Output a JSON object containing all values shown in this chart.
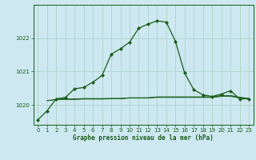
{
  "title": "Graphe pression niveau de la mer (hPa)",
  "bg_color": "#cde8f0",
  "grid_color": "#b0d4cc",
  "line_color": "#1a5c1a",
  "xlim": [
    -0.5,
    23.5
  ],
  "ylim": [
    1019.4,
    1023.0
  ],
  "yticks": [
    1020,
    1021,
    1022
  ],
  "xticks": [
    0,
    1,
    2,
    3,
    4,
    5,
    6,
    7,
    8,
    9,
    10,
    11,
    12,
    13,
    14,
    15,
    16,
    17,
    18,
    19,
    20,
    21,
    22,
    23
  ],
  "main_series": {
    "x": [
      0,
      1,
      2,
      3,
      4,
      5,
      6,
      7,
      8,
      9,
      10,
      11,
      12,
      13,
      14,
      15,
      16,
      17,
      18,
      19,
      20,
      21,
      22,
      23
    ],
    "y": [
      1019.55,
      1019.82,
      1020.18,
      1020.22,
      1020.48,
      1020.52,
      1020.68,
      1020.88,
      1021.52,
      1021.68,
      1021.88,
      1022.3,
      1022.42,
      1022.52,
      1022.48,
      1021.9,
      1020.95,
      1020.45,
      1020.3,
      1020.25,
      1020.32,
      1020.42,
      1020.18,
      1020.18
    ]
  },
  "flat_series1": {
    "x": [
      1,
      2,
      3,
      4,
      5,
      6,
      7,
      8,
      9,
      10,
      11,
      12,
      13,
      14,
      15,
      16,
      17,
      18,
      19,
      20,
      21,
      22,
      23
    ],
    "y": [
      1020.12,
      1020.15,
      1020.16,
      1020.16,
      1020.17,
      1020.17,
      1020.17,
      1020.18,
      1020.18,
      1020.2,
      1020.2,
      1020.2,
      1020.22,
      1020.22,
      1020.22,
      1020.22,
      1020.22,
      1020.22,
      1020.22,
      1020.25,
      1020.25,
      1020.2,
      1020.18
    ]
  },
  "flat_series2": {
    "x": [
      1,
      2,
      3,
      4,
      5,
      6,
      7,
      8,
      9,
      10,
      11,
      12,
      13,
      14,
      15,
      16,
      17,
      18,
      19,
      20,
      21,
      22,
      23
    ],
    "y": [
      1020.13,
      1020.16,
      1020.17,
      1020.17,
      1020.18,
      1020.18,
      1020.18,
      1020.19,
      1020.19,
      1020.21,
      1020.21,
      1020.21,
      1020.23,
      1020.23,
      1020.23,
      1020.23,
      1020.23,
      1020.23,
      1020.23,
      1020.27,
      1020.27,
      1020.22,
      1020.19
    ]
  },
  "flat_series3": {
    "x": [
      2,
      3,
      4,
      5,
      6,
      7,
      8,
      9,
      10,
      11,
      12,
      13,
      14,
      15,
      16,
      17,
      18,
      19,
      20,
      21,
      22,
      23
    ],
    "y": [
      1020.17,
      1020.18,
      1020.18,
      1020.19,
      1020.19,
      1020.19,
      1020.19,
      1020.19,
      1020.21,
      1020.21,
      1020.21,
      1020.24,
      1020.24,
      1020.24,
      1020.24,
      1020.24,
      1020.24,
      1020.24,
      1020.28,
      1020.28,
      1020.23,
      1020.19
    ]
  }
}
